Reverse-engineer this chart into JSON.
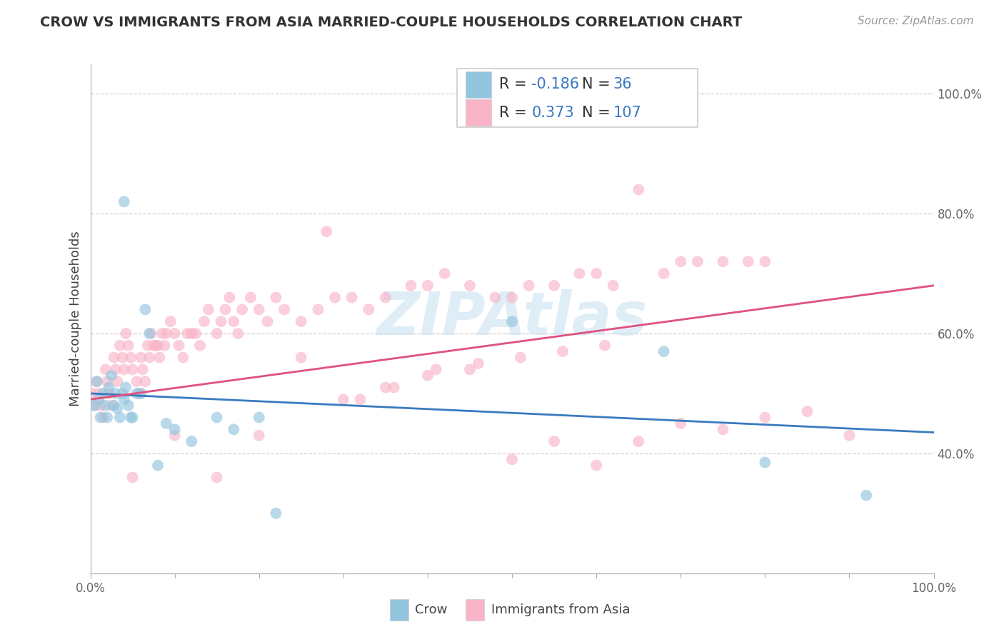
{
  "title": "CROW VS IMMIGRANTS FROM ASIA MARRIED-COUPLE HOUSEHOLDS CORRELATION CHART",
  "source": "Source: ZipAtlas.com",
  "ylabel": "Married-couple Households",
  "legend_label1": "Crow",
  "legend_label2": "Immigrants from Asia",
  "legend_r1": "-0.186",
  "legend_n1": "36",
  "legend_r2": "0.373",
  "legend_n2": "107",
  "crow_color": "#92c5de",
  "immigrants_color": "#f9b4c8",
  "crow_line_color": "#3a7abf",
  "immigrants_line_color": "#e05080",
  "legend_value_color": "#3a7abf",
  "watermark_color": "#c5dff0",
  "xlim": [
    0.0,
    1.0
  ],
  "ylim": [
    0.2,
    1.05
  ],
  "yticks": [
    0.4,
    0.6,
    0.8,
    1.0
  ],
  "ytick_labels": [
    "40.0%",
    "60.0%",
    "80.0%",
    "100.0%"
  ],
  "xtick_labels": [
    "0.0%",
    "100.0%"
  ],
  "background_color": "#ffffff",
  "grid_color": "#d0d0d0",
  "title_fontsize": 14,
  "axis_fontsize": 12,
  "legend_fontsize": 15,
  "crow_x": [
    0.005,
    0.008,
    0.01,
    0.012,
    0.015,
    0.018,
    0.02,
    0.022,
    0.025,
    0.028,
    0.03,
    0.032,
    0.035,
    0.038,
    0.04,
    0.042,
    0.045,
    0.048,
    0.05,
    0.055,
    0.06,
    0.065,
    0.07,
    0.08,
    0.09,
    0.1,
    0.04,
    0.12,
    0.15,
    0.2,
    0.22,
    0.5,
    0.68,
    0.8,
    0.92,
    0.17
  ],
  "crow_y": [
    0.48,
    0.52,
    0.49,
    0.46,
    0.5,
    0.48,
    0.46,
    0.51,
    0.53,
    0.48,
    0.5,
    0.475,
    0.46,
    0.5,
    0.49,
    0.51,
    0.48,
    0.46,
    0.46,
    0.5,
    0.5,
    0.64,
    0.6,
    0.38,
    0.45,
    0.44,
    0.82,
    0.42,
    0.46,
    0.46,
    0.3,
    0.62,
    0.57,
    0.385,
    0.33,
    0.44
  ],
  "immigrants_x": [
    0.002,
    0.005,
    0.007,
    0.01,
    0.012,
    0.015,
    0.018,
    0.02,
    0.022,
    0.025,
    0.028,
    0.03,
    0.032,
    0.035,
    0.038,
    0.04,
    0.042,
    0.045,
    0.048,
    0.05,
    0.055,
    0.058,
    0.06,
    0.062,
    0.065,
    0.068,
    0.07,
    0.072,
    0.075,
    0.078,
    0.08,
    0.082,
    0.085,
    0.088,
    0.09,
    0.095,
    0.1,
    0.105,
    0.11,
    0.115,
    0.12,
    0.125,
    0.13,
    0.135,
    0.14,
    0.15,
    0.155,
    0.16,
    0.165,
    0.17,
    0.175,
    0.18,
    0.19,
    0.2,
    0.21,
    0.22,
    0.23,
    0.25,
    0.27,
    0.29,
    0.31,
    0.33,
    0.35,
    0.38,
    0.4,
    0.42,
    0.45,
    0.48,
    0.5,
    0.52,
    0.55,
    0.58,
    0.6,
    0.62,
    0.65,
    0.68,
    0.7,
    0.72,
    0.75,
    0.78,
    0.8,
    0.05,
    0.1,
    0.15,
    0.2,
    0.25,
    0.3,
    0.35,
    0.4,
    0.45,
    0.5,
    0.55,
    0.6,
    0.65,
    0.7,
    0.75,
    0.8,
    0.85,
    0.9,
    0.28,
    0.32,
    0.36,
    0.41,
    0.46,
    0.51,
    0.56,
    0.61
  ],
  "immigrants_y": [
    0.5,
    0.48,
    0.52,
    0.5,
    0.48,
    0.46,
    0.54,
    0.52,
    0.5,
    0.48,
    0.56,
    0.54,
    0.52,
    0.58,
    0.56,
    0.54,
    0.6,
    0.58,
    0.56,
    0.54,
    0.52,
    0.5,
    0.56,
    0.54,
    0.52,
    0.58,
    0.56,
    0.6,
    0.58,
    0.58,
    0.58,
    0.56,
    0.6,
    0.58,
    0.6,
    0.62,
    0.6,
    0.58,
    0.56,
    0.6,
    0.6,
    0.6,
    0.58,
    0.62,
    0.64,
    0.6,
    0.62,
    0.64,
    0.66,
    0.62,
    0.6,
    0.64,
    0.66,
    0.64,
    0.62,
    0.66,
    0.64,
    0.62,
    0.64,
    0.66,
    0.66,
    0.64,
    0.66,
    0.68,
    0.68,
    0.7,
    0.68,
    0.66,
    0.66,
    0.68,
    0.68,
    0.7,
    0.7,
    0.68,
    0.84,
    0.7,
    0.72,
    0.72,
    0.72,
    0.72,
    0.72,
    0.36,
    0.43,
    0.36,
    0.43,
    0.56,
    0.49,
    0.51,
    0.53,
    0.54,
    0.39,
    0.42,
    0.38,
    0.42,
    0.45,
    0.44,
    0.46,
    0.47,
    0.43,
    0.77,
    0.49,
    0.51,
    0.54,
    0.55,
    0.56,
    0.57,
    0.58
  ]
}
